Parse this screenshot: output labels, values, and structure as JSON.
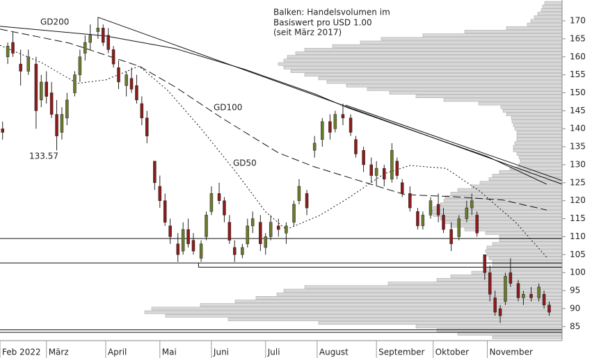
{
  "chart_data": {
    "type": "candlestick",
    "note": [
      "Balken: Handelsvolumen im",
      "Basiswert pro USD 1.00",
      "(seit März 2017)"
    ],
    "low_label": 133.57,
    "xlim": [
      0,
      218
    ],
    "xticks": [
      {
        "value": 0,
        "label": "Feb 2022"
      },
      {
        "value": 18,
        "label": "März"
      },
      {
        "value": 41,
        "label": "April"
      },
      {
        "value": 62,
        "label": "Mai"
      },
      {
        "value": 82,
        "label": "Juni"
      },
      {
        "value": 103,
        "label": "Juli"
      },
      {
        "value": 123,
        "label": "August"
      },
      {
        "value": 146,
        "label": "September"
      },
      {
        "value": 168,
        "label": "Oktober"
      },
      {
        "value": 189,
        "label": "November"
      }
    ],
    "ylim": [
      81.1,
      175.8
    ],
    "yticks": [
      85,
      90,
      95,
      100,
      105,
      110,
      115,
      120,
      125,
      130,
      135,
      140,
      145,
      150,
      155,
      160,
      165,
      170
    ],
    "up_color": "#6b7b2c",
    "down_color": "#8c1c1c",
    "x": [
      1,
      3,
      5,
      8,
      11,
      14,
      16,
      18,
      20,
      22,
      24,
      26,
      29,
      31,
      33,
      35,
      38,
      40,
      42,
      44,
      46,
      49,
      51,
      53,
      55,
      57,
      60,
      62,
      64,
      66,
      69,
      71,
      73,
      75,
      78,
      80,
      82,
      85,
      87,
      89,
      91,
      94,
      96,
      98,
      101,
      103,
      105,
      108,
      111,
      114,
      116,
      119,
      122,
      125,
      128,
      130,
      133,
      136,
      138,
      141,
      144,
      146,
      149,
      152,
      154,
      156,
      159,
      162,
      164,
      167,
      170,
      172,
      175,
      178,
      181,
      183,
      185,
      188,
      190,
      192,
      194,
      196,
      198,
      201,
      203,
      206,
      209,
      211,
      213
    ],
    "open": [
      140,
      160,
      164,
      158,
      156,
      158,
      148,
      153,
      150,
      144,
      139,
      143,
      150,
      155,
      161,
      164,
      167,
      168,
      166,
      162,
      157,
      152,
      154,
      152,
      147,
      143,
      131,
      124,
      120,
      113,
      108,
      106,
      112,
      109,
      104,
      110,
      117,
      122,
      120,
      114,
      107,
      105,
      108,
      113,
      114,
      107,
      110,
      113,
      111,
      114,
      120,
      122,
      134,
      137,
      142,
      140,
      144,
      143,
      137,
      134,
      130,
      127,
      129,
      126,
      131,
      125,
      122,
      117,
      113,
      116,
      119,
      116,
      112,
      110,
      115,
      118,
      116,
      105,
      100,
      93,
      90,
      92,
      100,
      97,
      93,
      94,
      93,
      94,
      91
    ],
    "high": [
      142,
      164,
      167,
      162,
      162,
      160,
      155,
      156,
      153,
      148,
      146,
      150,
      156,
      162,
      166,
      169,
      171,
      169,
      168,
      163,
      159,
      156,
      157,
      155,
      149,
      145,
      131,
      127,
      122,
      115,
      111,
      114,
      115,
      111,
      109,
      117,
      124,
      125,
      121,
      116,
      109,
      108,
      115,
      117,
      116,
      111,
      116,
      115,
      114,
      120,
      126,
      123,
      138,
      143,
      144,
      145,
      147,
      144,
      138,
      135,
      132,
      131,
      130,
      136,
      132,
      126,
      124,
      118,
      117,
      121,
      122,
      118,
      114,
      116,
      120,
      122,
      117,
      105,
      102,
      95,
      91,
      100,
      104,
      98,
      95,
      96,
      97,
      95,
      92
    ],
    "low": [
      137,
      158,
      160,
      152,
      155,
      140,
      146,
      147,
      143,
      134,
      137,
      141,
      149,
      153,
      159,
      162,
      165,
      163,
      161,
      157,
      151,
      149,
      150,
      147,
      141,
      136,
      123,
      118,
      113,
      108,
      103,
      105,
      107,
      105,
      103,
      109,
      116,
      119,
      114,
      108,
      103,
      104,
      107,
      111,
      106,
      105,
      109,
      110,
      108,
      113,
      119,
      116,
      132,
      135,
      137,
      139,
      141,
      138,
      132,
      128,
      125,
      124,
      124,
      125,
      126,
      121,
      117,
      112,
      112,
      115,
      114,
      111,
      106,
      109,
      114,
      116,
      110,
      98,
      92,
      88,
      86,
      91,
      96,
      92,
      91,
      92,
      92,
      90,
      88
    ],
    "close": [
      139,
      163,
      161,
      156,
      160,
      145,
      153,
      149,
      144,
      138,
      144,
      148,
      155,
      160,
      164,
      166,
      168,
      164,
      162,
      158,
      153,
      155,
      151,
      148,
      143,
      138,
      125,
      120,
      114,
      110,
      105,
      112,
      108,
      106,
      108,
      116,
      122,
      120,
      116,
      109,
      105,
      107,
      113,
      115,
      108,
      110,
      114,
      112,
      113,
      119,
      124,
      118,
      136,
      142,
      139,
      144,
      143,
      139,
      133,
      130,
      127,
      129,
      126,
      134,
      127,
      122,
      118,
      113,
      116,
      120,
      116,
      112,
      108,
      115,
      118,
      120,
      111,
      100,
      94,
      89,
      88,
      99,
      97,
      93,
      94,
      93,
      96,
      91,
      89
    ],
    "volume_profile": {
      "color": "#d9d9d9",
      "levels": [
        82,
        83,
        84,
        85,
        86,
        87,
        88,
        89,
        90,
        91,
        92,
        93,
        94,
        95,
        96,
        97,
        98,
        99,
        100,
        101,
        102,
        103,
        104,
        105,
        106,
        107,
        108,
        109,
        110,
        111,
        112,
        113,
        114,
        115,
        116,
        117,
        118,
        119,
        120,
        121,
        122,
        123,
        124,
        125,
        126,
        127,
        128,
        129,
        130,
        131,
        132,
        133,
        134,
        135,
        136,
        137,
        138,
        139,
        140,
        141,
        142,
        143,
        144,
        145,
        146,
        147,
        148,
        149,
        150,
        151,
        152,
        153,
        154,
        155,
        156,
        157,
        158,
        159,
        160,
        161,
        162,
        163,
        164,
        165,
        166,
        167,
        168,
        169,
        170,
        171,
        172,
        173,
        174,
        175
      ],
      "values": [
        100,
        150,
        180,
        210,
        350,
        480,
        570,
        600,
        590,
        520,
        470,
        440,
        410,
        400,
        370,
        250,
        180,
        160,
        130,
        110,
        100,
        100,
        105,
        108,
        110,
        108,
        100,
        90,
        90,
        110,
        140,
        160,
        170,
        175,
        185,
        190,
        185,
        175,
        170,
        168,
        160,
        150,
        130,
        118,
        105,
        100,
        90,
        75,
        62,
        60,
        62,
        65,
        70,
        70,
        68,
        65,
        65,
        65,
        68,
        70,
        72,
        73,
        80,
        85,
        88,
        120,
        170,
        210,
        248,
        280,
        310,
        338,
        350,
        370,
        390,
        400,
        408,
        400,
        395,
        383,
        370,
        330,
        290,
        260,
        200,
        140,
        80,
        50,
        45,
        40,
        35,
        30,
        28,
        25
      ]
    },
    "lines": [
      {
        "name": "GD200",
        "color": "#111111",
        "style": "solid",
        "x": [
          0,
          41,
          68,
          95,
          122,
          135,
          162,
          189,
          212
        ],
        "y": [
          168.5,
          165.8,
          162.3,
          156.5,
          149.7,
          145.8,
          139,
          132.3,
          124.6
        ]
      },
      {
        "name": "GD100",
        "color": "#111111",
        "style": "dash",
        "x": [
          0,
          27,
          54,
          68,
          86,
          108,
          122,
          141,
          157,
          176,
          195,
          212
        ],
        "y": [
          167.7,
          163.8,
          157.4,
          151.6,
          143,
          133.3,
          129.4,
          125.2,
          121.7,
          121.1,
          120.2,
          117.4
        ]
      },
      {
        "name": "GD50",
        "color": "#111111",
        "style": "dot",
        "x": [
          0,
          16,
          30,
          41,
          54,
          65,
          78,
          92,
          103,
          111,
          124,
          135,
          149,
          159,
          173,
          186,
          200,
          212
        ],
        "y": [
          163.2,
          158.4,
          152.6,
          153.6,
          157.4,
          150.7,
          140,
          127.5,
          116.9,
          112,
          115.9,
          120.7,
          127.5,
          129.8,
          129,
          122.7,
          114,
          104.3
        ]
      }
    ],
    "support_lines": [
      {
        "x": [
          38,
          218
        ],
        "y": [
          171,
          124.6
        ]
      },
      {
        "x": [
          134,
          218
        ],
        "y": [
          146.6,
          125.6
        ]
      },
      {
        "x": [
          0,
          218
        ],
        "y": [
          109.5,
          109.5
        ]
      },
      {
        "x": [
          0,
          218
        ],
        "y": [
          102.7,
          102.7
        ]
      },
      {
        "x": [
          77,
          77,
          218
        ],
        "y": [
          102.7,
          101.5,
          101.5
        ]
      },
      {
        "x": [
          0,
          218
        ],
        "y": [
          84.1,
          84.1
        ]
      },
      {
        "x": [
          0,
          218
        ],
        "y": [
          83.4,
          83.4
        ]
      }
    ]
  }
}
